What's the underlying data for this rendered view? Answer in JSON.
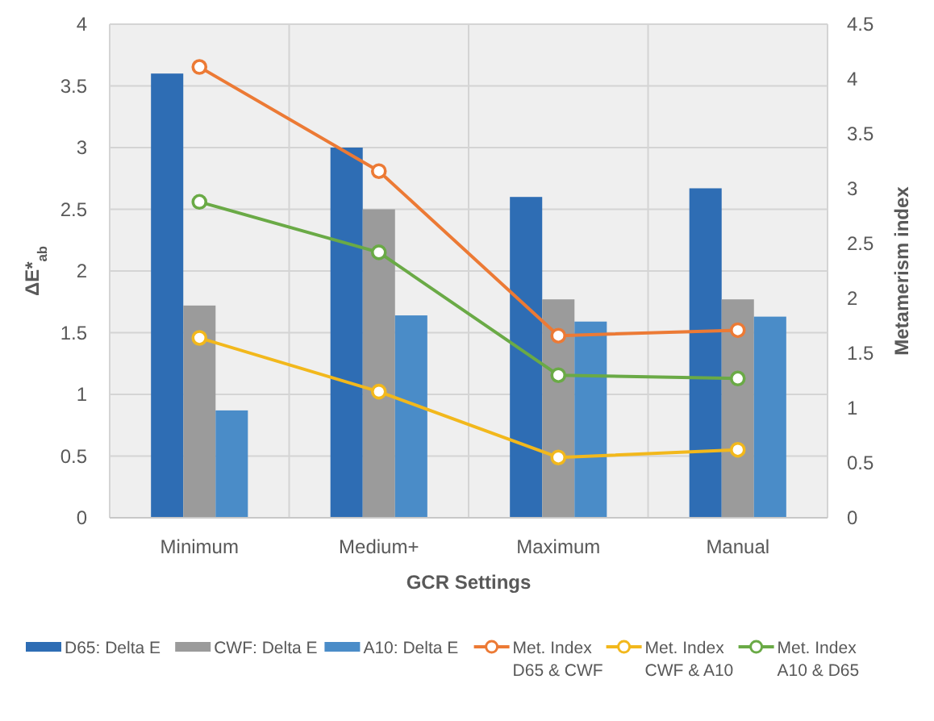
{
  "chart_data": {
    "type": "bar",
    "xlabel": "GCR Settings",
    "ylabel": "ΔE*$_{ab}$",
    "y2label": "Metamerism index",
    "categories": [
      "Minimum",
      "Medium+",
      "Maximum",
      "Manual"
    ],
    "series": [
      {
        "name": "D65: Delta E",
        "color": "#2e6db4",
        "values": [
          3.6,
          3.0,
          2.6,
          2.67
        ]
      },
      {
        "name": "CWF: Delta E",
        "color": "#9b9b9b",
        "values": [
          1.72,
          2.5,
          1.77,
          1.77
        ]
      },
      {
        "name": "A10: Delta E",
        "color": "#4a8cc8",
        "values": [
          0.87,
          1.64,
          1.59,
          1.63
        ]
      },
      {
        "name": "Met. Index D65 & CWF",
        "type": "line",
        "axis": "y2",
        "color": "#ec7a35",
        "values": [
          4.11,
          3.16,
          1.66,
          1.71
        ]
      },
      {
        "name": "Met. Index CWF & A10",
        "type": "line",
        "axis": "y2",
        "color": "#f2b81c",
        "values": [
          1.64,
          1.15,
          0.55,
          0.62
        ]
      },
      {
        "name": "Met. Index A10 & D65",
        "type": "line",
        "axis": "y2",
        "color": "#6aaa46",
        "values": [
          2.88,
          2.42,
          1.3,
          1.27
        ]
      }
    ],
    "ylim": [
      0,
      4
    ],
    "yticks": [
      0,
      0.5,
      1,
      1.5,
      2,
      2.5,
      3,
      3.5,
      4
    ],
    "y2lim": [
      0,
      4.5
    ],
    "y2ticks": [
      0,
      0.5,
      1,
      1.5,
      2,
      2.5,
      3,
      3.5,
      4,
      4.5
    ],
    "grid": true,
    "legend": "bottom",
    "marker": "circle"
  }
}
